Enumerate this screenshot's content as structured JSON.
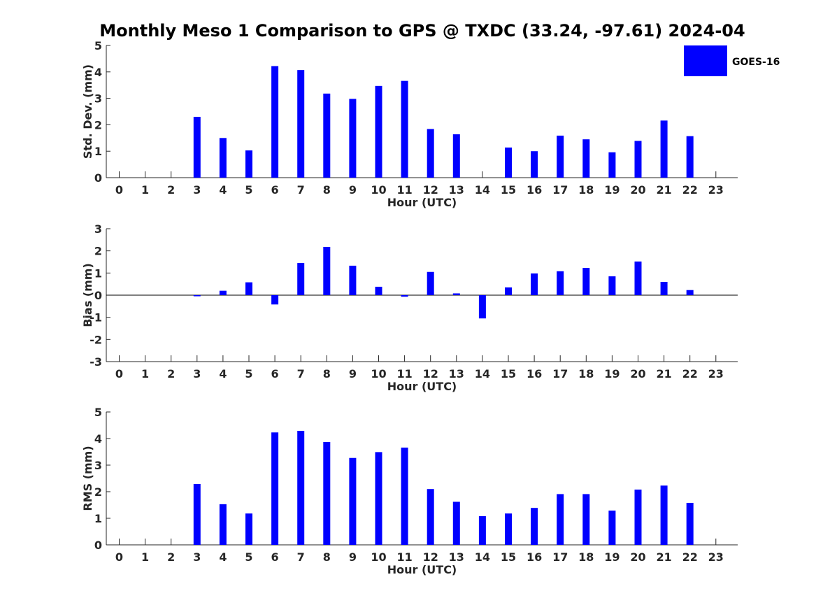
{
  "figure": {
    "title": "Monthly Meso 1 Comparison to GPS @ TXDC (33.24, -97.61) 2024-04",
    "bar_color": "#0000ff",
    "axis_color": "#262626",
    "legend": {
      "label": "GOES-16",
      "color": "#0000ff"
    }
  },
  "chart_data": [
    {
      "type": "bar",
      "title": "Monthly Meso 1 Comparison to GPS @ TXDC (33.24, -97.61) 2024-04",
      "xlabel": "Hour (UTC)",
      "ylabel": "Std. Dev. (mm)",
      "ylim": [
        0,
        5
      ],
      "yticks": [
        0,
        1,
        2,
        3,
        4,
        5
      ],
      "categories": [
        "0",
        "1",
        "2",
        "3",
        "4",
        "5",
        "6",
        "7",
        "8",
        "9",
        "10",
        "11",
        "12",
        "13",
        "14",
        "15",
        "16",
        "17",
        "18",
        "19",
        "20",
        "21",
        "22",
        "23"
      ],
      "series": [
        {
          "name": "GOES-16",
          "values": [
            null,
            null,
            null,
            2.3,
            1.5,
            1.03,
            4.22,
            4.07,
            3.18,
            2.98,
            3.47,
            3.66,
            1.84,
            1.64,
            null,
            1.14,
            1.0,
            1.59,
            1.45,
            0.96,
            1.39,
            2.16,
            1.57,
            null
          ]
        }
      ]
    },
    {
      "type": "bar",
      "xlabel": "Hour (UTC)",
      "ylabel": "Bias (mm)",
      "ylim": [
        -3,
        3
      ],
      "yticks": [
        -3,
        -2,
        -1,
        0,
        1,
        2,
        3
      ],
      "categories": [
        "0",
        "1",
        "2",
        "3",
        "4",
        "5",
        "6",
        "7",
        "8",
        "9",
        "10",
        "11",
        "12",
        "13",
        "14",
        "15",
        "16",
        "17",
        "18",
        "19",
        "20",
        "21",
        "22",
        "23"
      ],
      "series": [
        {
          "name": "GOES-16",
          "values": [
            null,
            null,
            null,
            -0.05,
            0.2,
            0.58,
            -0.42,
            1.45,
            2.18,
            1.33,
            0.38,
            -0.07,
            1.05,
            0.08,
            -1.05,
            0.35,
            0.98,
            1.08,
            1.23,
            0.85,
            1.52,
            0.6,
            0.23,
            null
          ]
        }
      ]
    },
    {
      "type": "bar",
      "xlabel": "Hour (UTC)",
      "ylabel": "RMS (mm)",
      "ylim": [
        0,
        5
      ],
      "yticks": [
        0,
        1,
        2,
        3,
        4,
        5
      ],
      "categories": [
        "0",
        "1",
        "2",
        "3",
        "4",
        "5",
        "6",
        "7",
        "8",
        "9",
        "10",
        "11",
        "12",
        "13",
        "14",
        "15",
        "16",
        "17",
        "18",
        "19",
        "20",
        "21",
        "22",
        "23"
      ],
      "series": [
        {
          "name": "GOES-16",
          "values": [
            null,
            null,
            null,
            2.29,
            1.53,
            1.18,
            4.23,
            4.29,
            3.87,
            3.27,
            3.49,
            3.66,
            2.1,
            1.62,
            1.08,
            1.18,
            1.39,
            1.91,
            1.91,
            1.29,
            2.08,
            2.23,
            1.58,
            null
          ]
        }
      ]
    }
  ]
}
